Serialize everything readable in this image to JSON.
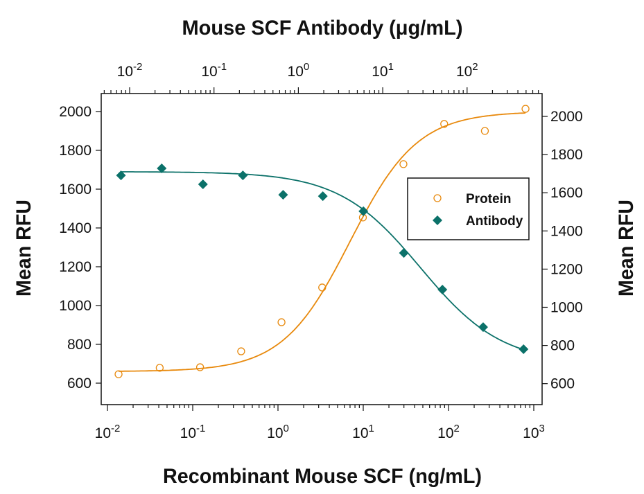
{
  "chart_data": {
    "type": "scatter",
    "title": "",
    "top_xlabel": "Mouse SCF Antibody (μg/mL)",
    "xlabel": "Recombinant Mouse SCF (ng/mL)",
    "ylabel": "Mean RFU",
    "ylabel_right": "Mean RFU",
    "x_scale": "log",
    "xlim": [
      0.01,
      1000
    ],
    "top_xlim": [
      0.01,
      500
    ],
    "ylim": [
      600,
      2000
    ],
    "x_ticks": [
      "-2",
      "-1",
      "0",
      "1",
      "2",
      "3"
    ],
    "top_x_ticks": [
      "-2",
      "-1",
      "0",
      "1",
      "2"
    ],
    "y_ticks": [
      600,
      800,
      1000,
      1200,
      1400,
      1600,
      1800,
      2000
    ],
    "tick_base": "10",
    "grid": false,
    "legend_position": "center-right",
    "series": [
      {
        "name": "Protein",
        "axis": "bottom",
        "marker": "open-circle",
        "color": "#e8890c",
        "x": [
          0.0135,
          0.041,
          0.122,
          0.37,
          1.1,
          3.3,
          9.9,
          29.6,
          89,
          267,
          800
        ],
        "y": [
          646,
          679,
          682,
          764,
          914,
          1093,
          1454,
          1729,
          1936,
          1900,
          2014
        ],
        "fit": {
          "bottom": 660,
          "top": 2000,
          "ec50": 7,
          "hill": 1.1
        }
      },
      {
        "name": "Antibody",
        "axis": "top",
        "marker": "filled-diamond",
        "color": "#0b7169",
        "x": [
          0.0079,
          0.024,
          0.074,
          0.22,
          0.66,
          1.95,
          5.9,
          17.8,
          51,
          155,
          467
        ],
        "y": [
          1671,
          1707,
          1625,
          1671,
          1571,
          1564,
          1486,
          1271,
          1082,
          889,
          775
        ],
        "fit": {
          "bottom": 700,
          "top": 1690,
          "ec50": 28,
          "hill": 0.9
        }
      }
    ]
  }
}
